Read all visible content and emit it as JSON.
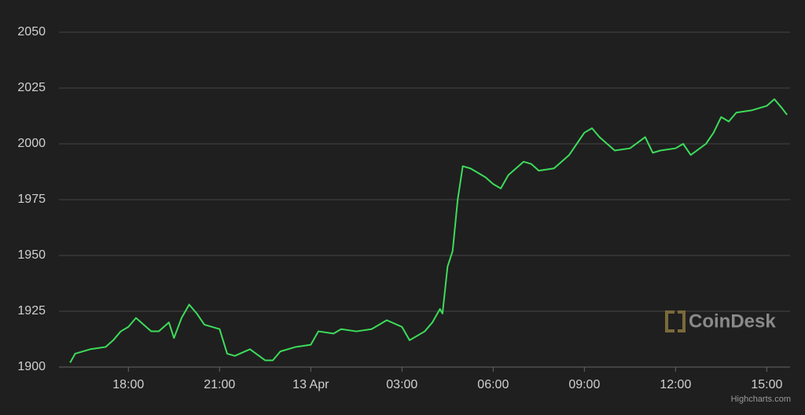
{
  "chart_data": {
    "type": "line",
    "watermark": "CoinDesk",
    "credits": "Highcharts.com",
    "grid": true,
    "background": "#1f1f1f",
    "ylim": [
      1900,
      2050
    ],
    "yticks": [
      1900,
      1925,
      1950,
      1975,
      2000,
      2025,
      2050
    ],
    "xlim": [
      "12 Apr 15:43",
      "13 Apr 15:46"
    ],
    "xticks": [
      {
        "value": "12 Apr 18:00",
        "label": "18:00"
      },
      {
        "value": "12 Apr 21:00",
        "label": "21:00"
      },
      {
        "value": "13 Apr 00:00",
        "label": "13 Apr"
      },
      {
        "value": "13 Apr 03:00",
        "label": "03:00"
      },
      {
        "value": "13 Apr 06:00",
        "label": "06:00"
      },
      {
        "value": "13 Apr 09:00",
        "label": "09:00"
      },
      {
        "value": "13 Apr 12:00",
        "label": "12:00"
      },
      {
        "value": "13 Apr 15:00",
        "label": "15:00"
      }
    ],
    "x": [
      "12 Apr 16:05",
      "12 Apr 16:15",
      "12 Apr 16:45",
      "12 Apr 17:15",
      "12 Apr 17:30",
      "12 Apr 17:45",
      "12 Apr 18:00",
      "12 Apr 18:15",
      "12 Apr 18:45",
      "12 Apr 19:00",
      "12 Apr 19:20",
      "12 Apr 19:30",
      "12 Apr 19:45",
      "12 Apr 20:00",
      "12 Apr 20:15",
      "12 Apr 20:30",
      "12 Apr 21:00",
      "12 Apr 21:15",
      "12 Apr 21:30",
      "12 Apr 22:00",
      "12 Apr 22:30",
      "12 Apr 22:45",
      "12 Apr 23:00",
      "12 Apr 23:30",
      "13 Apr 00:00",
      "13 Apr 00:15",
      "13 Apr 00:45",
      "13 Apr 01:00",
      "13 Apr 01:30",
      "13 Apr 02:00",
      "13 Apr 02:30",
      "13 Apr 03:00",
      "13 Apr 03:15",
      "13 Apr 03:45",
      "13 Apr 04:00",
      "13 Apr 04:15",
      "13 Apr 04:20",
      "13 Apr 04:30",
      "13 Apr 04:40",
      "13 Apr 04:50",
      "13 Apr 05:00",
      "13 Apr 05:15",
      "13 Apr 05:30",
      "13 Apr 05:45",
      "13 Apr 06:00",
      "13 Apr 06:15",
      "13 Apr 06:30",
      "13 Apr 07:00",
      "13 Apr 07:15",
      "13 Apr 07:30",
      "13 Apr 08:00",
      "13 Apr 08:30",
      "13 Apr 08:45",
      "13 Apr 09:00",
      "13 Apr 09:15",
      "13 Apr 09:30",
      "13 Apr 09:45",
      "13 Apr 10:00",
      "13 Apr 10:30",
      "13 Apr 11:00",
      "13 Apr 11:15",
      "13 Apr 11:30",
      "13 Apr 12:00",
      "13 Apr 12:15",
      "13 Apr 12:30",
      "13 Apr 13:00",
      "13 Apr 13:15",
      "13 Apr 13:30",
      "13 Apr 13:45",
      "13 Apr 14:00",
      "13 Apr 14:30",
      "13 Apr 15:00",
      "13 Apr 15:15",
      "13 Apr 15:30",
      "13 Apr 15:40"
    ],
    "series": [
      {
        "color": "#3ddc5a",
        "values": [
          1902,
          1906,
          1908,
          1909,
          1912,
          1916,
          1918,
          1922,
          1916,
          1916,
          1920,
          1913,
          1922,
          1928,
          1924,
          1919,
          1917,
          1906,
          1905,
          1908,
          1903,
          1903,
          1907,
          1909,
          1910,
          1916,
          1915,
          1917,
          1916,
          1917,
          1921,
          1918,
          1912,
          1916,
          1920,
          1926,
          1924,
          1945,
          1952,
          1975,
          1990,
          1989,
          1987,
          1985,
          1982,
          1980,
          1986,
          1992,
          1991,
          1988,
          1989,
          1995,
          2000,
          2005,
          2007,
          2003,
          2000,
          1997,
          1998,
          2003,
          1996,
          1997,
          1998,
          2000,
          1995,
          2000,
          2005,
          2012,
          2010,
          2014,
          2015,
          2017,
          2020,
          2016,
          2013
        ]
      }
    ]
  }
}
